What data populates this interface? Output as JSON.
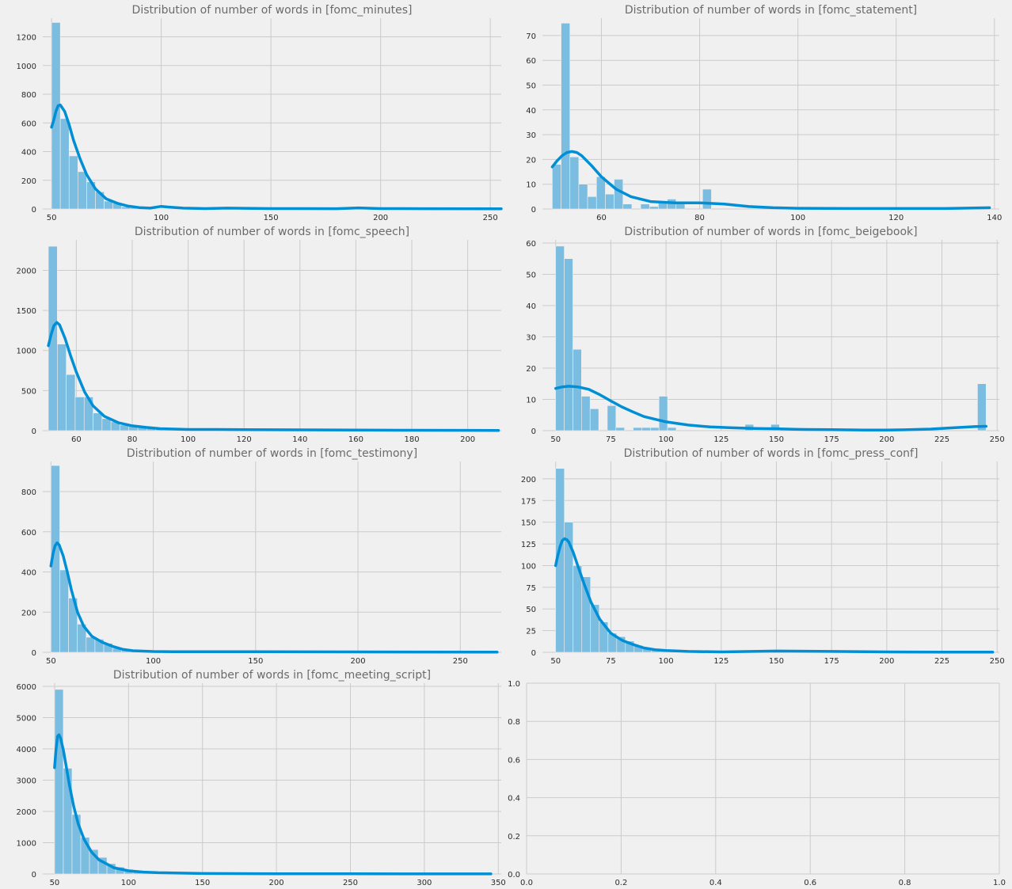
{
  "colors": {
    "background": "#f0f0f0",
    "grid": "#cbcbcb",
    "bar": "#7bbde0",
    "kde": "#008fd5",
    "title": "#6b6b6b"
  },
  "chart_data": [
    {
      "type": "histogram",
      "title": "Distribution of number of words in [fomc_minutes]",
      "xlim": [
        46,
        255
      ],
      "ylim": [
        0,
        1330
      ],
      "xticks": [
        50,
        100,
        150,
        200,
        250
      ],
      "yticks": [
        0,
        200,
        400,
        600,
        800,
        1000,
        1200
      ],
      "bins": {
        "start": 50,
        "width": 4,
        "counts": [
          1300,
          630,
          370,
          260,
          190,
          120,
          55,
          40,
          15,
          8,
          5,
          4,
          3,
          2,
          2,
          2,
          1,
          1,
          1
        ]
      },
      "kde": {
        "x": [
          50,
          51,
          52,
          53,
          54,
          56,
          58,
          60,
          63,
          66,
          70,
          75,
          80,
          85,
          90,
          95,
          100,
          103,
          110,
          120,
          130,
          150,
          180,
          190,
          200,
          220,
          255
        ],
        "y": [
          570,
          620,
          680,
          720,
          725,
          680,
          590,
          480,
          350,
          240,
          140,
          70,
          40,
          20,
          10,
          6,
          18,
          14,
          6,
          3,
          6,
          3,
          2,
          8,
          3,
          2,
          1
        ]
      }
    },
    {
      "type": "histogram",
      "title": "Distribution of number of words in [fomc_statement]",
      "xlim": [
        48,
        141
      ],
      "ylim": [
        0,
        77
      ],
      "xticks": [
        60,
        80,
        100,
        120,
        140
      ],
      "yticks": [
        0,
        10,
        20,
        30,
        40,
        50,
        60,
        70
      ],
      "bins": {
        "start": 50,
        "width": 1.8,
        "counts": [
          18,
          75,
          21,
          10,
          5,
          13,
          6,
          12,
          2,
          0,
          2,
          1,
          3,
          4,
          2,
          0,
          0,
          8
        ]
      },
      "kde": {
        "x": [
          50,
          51,
          52,
          53,
          54,
          55,
          56,
          58,
          60,
          63,
          66,
          70,
          75,
          80,
          85,
          90,
          95,
          100,
          110,
          120,
          130,
          139
        ],
        "y": [
          17,
          19.5,
          21.5,
          22.8,
          23.2,
          22.8,
          21.5,
          17.5,
          13,
          8,
          5,
          3,
          2.5,
          2.5,
          2,
          1,
          0.5,
          0.3,
          0.2,
          0.2,
          0.2,
          0.5
        ]
      }
    },
    {
      "type": "histogram",
      "title": "Distribution of number of words in [fomc_speech]",
      "xlim": [
        48,
        212
      ],
      "ylim": [
        0,
        2380
      ],
      "xticks": [
        60,
        80,
        100,
        120,
        140,
        160,
        180,
        200
      ],
      "yticks": [
        0,
        500,
        1000,
        1500,
        2000
      ],
      "bins": {
        "start": 50,
        "width": 3.2,
        "counts": [
          2300,
          1080,
          700,
          420,
          420,
          220,
          150,
          110,
          70,
          55,
          40,
          25,
          20,
          15,
          12,
          10,
          8,
          6,
          5,
          4
        ]
      },
      "kde": {
        "x": [
          50,
          51,
          52,
          53,
          54,
          56,
          58,
          60,
          63,
          66,
          70,
          75,
          80,
          85,
          90,
          100,
          110,
          120,
          140,
          160,
          180,
          200,
          211
        ],
        "y": [
          1060,
          1200,
          1310,
          1350,
          1320,
          1150,
          930,
          730,
          480,
          310,
          180,
          100,
          60,
          40,
          25,
          15,
          15,
          12,
          10,
          8,
          5,
          4,
          3
        ]
      }
    },
    {
      "type": "histogram",
      "title": "Distribution of number of words in [fomc_beigebook]",
      "xlim": [
        44,
        251
      ],
      "ylim": [
        0,
        61
      ],
      "xticks": [
        50,
        75,
        100,
        125,
        150,
        175,
        200,
        225,
        250
      ],
      "yticks": [
        0,
        10,
        20,
        30,
        40,
        50,
        60
      ],
      "bins": {
        "start": 50,
        "width": 3.9,
        "counts": [
          59,
          55,
          26,
          11,
          7,
          0,
          8,
          1,
          0,
          1,
          1,
          1,
          11,
          1,
          0,
          0,
          0,
          0,
          0,
          0,
          0,
          0,
          2,
          0,
          0,
          2,
          0,
          0,
          0,
          0,
          0,
          0,
          0,
          0,
          0,
          0,
          0,
          0,
          0,
          0,
          0,
          0,
          0,
          0,
          0,
          0,
          0,
          0,
          0,
          15
        ]
      },
      "kde": {
        "x": [
          50,
          53,
          56,
          60,
          65,
          70,
          75,
          80,
          85,
          90,
          100,
          110,
          120,
          130,
          140,
          150,
          160,
          175,
          190,
          200,
          210,
          220,
          230,
          240,
          245
        ],
        "y": [
          13.5,
          14,
          14.2,
          14,
          13.2,
          11.5,
          9.5,
          7.6,
          6,
          4.5,
          2.8,
          1.8,
          1.2,
          0.9,
          0.7,
          0.6,
          0.4,
          0.3,
          0.2,
          0.2,
          0.3,
          0.5,
          0.9,
          1.3,
          1.4
        ]
      }
    },
    {
      "type": "histogram",
      "title": "Distribution of number of words in [fomc_testimony]",
      "xlim": [
        46,
        270
      ],
      "ylim": [
        0,
        950
      ],
      "xticks": [
        50,
        100,
        150,
        200,
        250
      ],
      "yticks": [
        0,
        200,
        400,
        600,
        800
      ],
      "bins": {
        "start": 50,
        "width": 4.3,
        "counts": [
          930,
          410,
          270,
          140,
          75,
          65,
          45,
          20,
          10,
          8,
          5,
          4,
          3,
          3,
          2
        ]
      },
      "kde": {
        "x": [
          50,
          51,
          52,
          53,
          54,
          56,
          58,
          60,
          63,
          66,
          70,
          75,
          80,
          85,
          90,
          100,
          110,
          150,
          200,
          268
        ],
        "y": [
          430,
          490,
          530,
          545,
          535,
          480,
          400,
          310,
          200,
          130,
          80,
          50,
          30,
          15,
          8,
          4,
          3,
          3,
          2,
          1
        ]
      }
    },
    {
      "type": "histogram",
      "title": "Distribution of number of words in [fomc_press_conf]",
      "xlim": [
        44,
        251
      ],
      "ylim": [
        0,
        220
      ],
      "xticks": [
        50,
        75,
        100,
        125,
        150,
        175,
        200,
        225,
        250
      ],
      "yticks": [
        0,
        25,
        50,
        75,
        100,
        125,
        150,
        175,
        200
      ],
      "bins": {
        "start": 50,
        "width": 3.95,
        "counts": [
          212,
          150,
          100,
          87,
          55,
          35,
          22,
          18,
          13,
          8,
          5,
          3,
          2,
          1,
          1,
          1
        ]
      },
      "kde": {
        "x": [
          50,
          51,
          52,
          53,
          54,
          55,
          56,
          58,
          60,
          63,
          66,
          70,
          75,
          80,
          85,
          90,
          95,
          100,
          110,
          125,
          150,
          175,
          200,
          225,
          248
        ],
        "y": [
          100,
          112,
          122,
          129,
          131,
          130,
          127,
          115,
          100,
          78,
          58,
          38,
          22,
          14,
          9,
          5,
          3,
          2,
          1,
          0.5,
          1.5,
          1,
          0.5,
          0.3,
          0.3
        ]
      }
    },
    {
      "type": "histogram",
      "title": "Distribution of number of words in [fomc_meeting_script]",
      "xlim": [
        42,
        352
      ],
      "ylim": [
        0,
        6100
      ],
      "xticks": [
        50,
        100,
        150,
        200,
        250,
        300,
        350
      ],
      "yticks": [
        0,
        1000,
        2000,
        3000,
        4000,
        5000,
        6000
      ],
      "bins": {
        "start": 50,
        "width": 5.9,
        "counts": [
          5900,
          3380,
          1900,
          1170,
          780,
          530,
          330,
          220,
          150,
          100,
          70,
          45,
          30,
          20,
          15,
          10,
          8,
          6,
          4,
          3
        ]
      },
      "kde": {
        "x": [
          50,
          51,
          52,
          53,
          54,
          56,
          58,
          60,
          63,
          66,
          70,
          75,
          80,
          90,
          100,
          110,
          120,
          150,
          200,
          250,
          300,
          345
        ],
        "y": [
          3400,
          4000,
          4400,
          4450,
          4350,
          3950,
          3400,
          2850,
          2150,
          1600,
          1100,
          700,
          450,
          200,
          100,
          60,
          40,
          15,
          8,
          5,
          3,
          2
        ]
      }
    },
    {
      "type": "empty",
      "title": "",
      "xlim": [
        0,
        1
      ],
      "ylim": [
        0,
        1
      ],
      "xticks": [
        0,
        0.2,
        0.4,
        0.6,
        0.8,
        1
      ],
      "yticks": [
        0,
        0.2,
        0.4,
        0.6,
        0.8,
        1
      ],
      "tick_labels_x": [
        "0.0",
        "0.2",
        "0.4",
        "0.6",
        "0.8",
        "1.0"
      ],
      "tick_labels_y": [
        "0.0",
        "0.2",
        "0.4",
        "0.6",
        "0.8",
        "1.0"
      ]
    }
  ]
}
